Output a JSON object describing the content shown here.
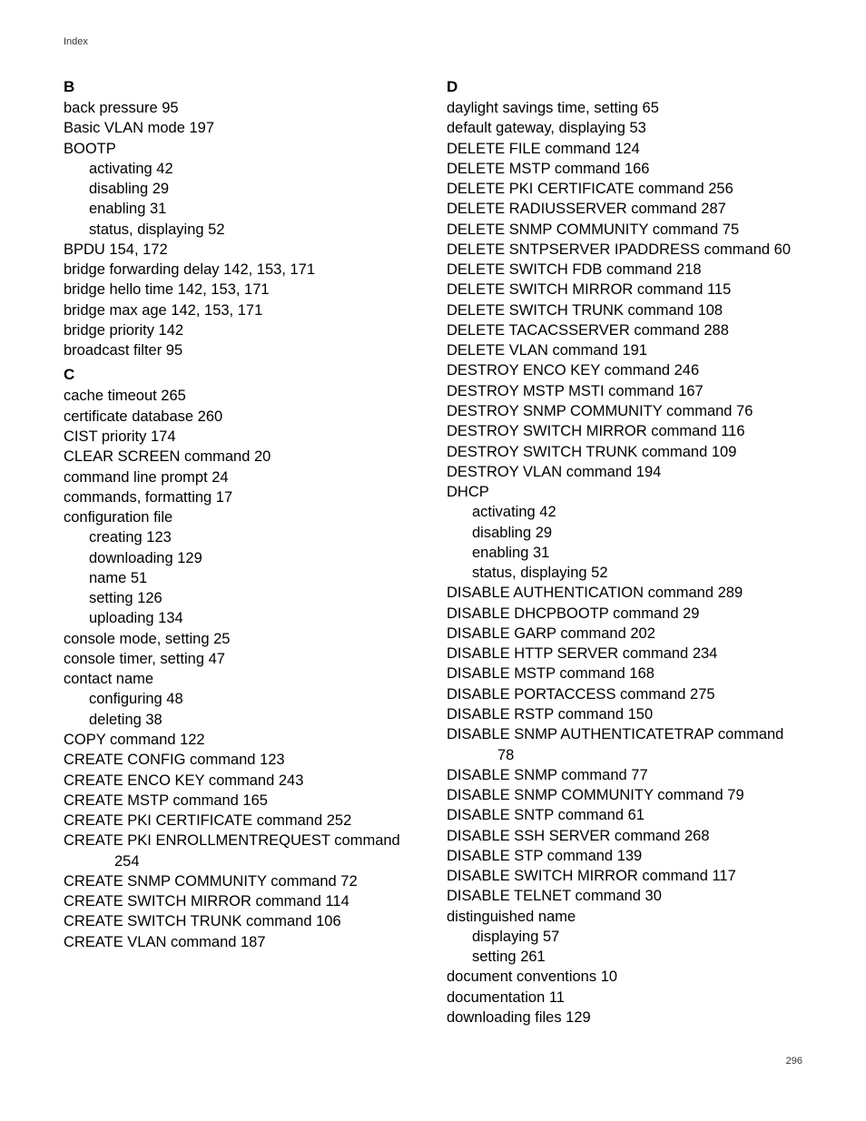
{
  "header": "Index",
  "page_number": "296",
  "left": {
    "B": {
      "letter": "B",
      "lines": [
        {
          "t": "back pressure 95",
          "i": 0
        },
        {
          "t": "Basic VLAN mode 197",
          "i": 0
        },
        {
          "t": "BOOTP",
          "i": 0
        },
        {
          "t": "activating 42",
          "i": 1
        },
        {
          "t": "disabling 29",
          "i": 1
        },
        {
          "t": "enabling 31",
          "i": 1
        },
        {
          "t": "status, displaying 52",
          "i": 1
        },
        {
          "t": "BPDU 154, 172",
          "i": 0
        },
        {
          "t": "bridge forwarding delay 142, 153, 171",
          "i": 0
        },
        {
          "t": "bridge hello time 142, 153, 171",
          "i": 0
        },
        {
          "t": "bridge max age 142, 153, 171",
          "i": 0
        },
        {
          "t": "bridge priority 142",
          "i": 0
        },
        {
          "t": "broadcast filter 95",
          "i": 0
        }
      ]
    },
    "C": {
      "letter": "C",
      "lines": [
        {
          "t": "cache timeout 265",
          "i": 0
        },
        {
          "t": "certificate database 260",
          "i": 0
        },
        {
          "t": "CIST priority 174",
          "i": 0
        },
        {
          "t": "CLEAR SCREEN command 20",
          "i": 0
        },
        {
          "t": "command line prompt 24",
          "i": 0
        },
        {
          "t": "commands, formatting 17",
          "i": 0
        },
        {
          "t": "configuration file",
          "i": 0
        },
        {
          "t": "creating 123",
          "i": 1
        },
        {
          "t": "downloading 129",
          "i": 1
        },
        {
          "t": "name 51",
          "i": 1
        },
        {
          "t": "setting 126",
          "i": 1
        },
        {
          "t": "uploading 134",
          "i": 1
        },
        {
          "t": "console mode, setting 25",
          "i": 0
        },
        {
          "t": "console timer, setting 47",
          "i": 0
        },
        {
          "t": "contact name",
          "i": 0
        },
        {
          "t": "configuring 48",
          "i": 1
        },
        {
          "t": "deleting 38",
          "i": 1
        },
        {
          "t": "COPY command 122",
          "i": 0
        },
        {
          "t": "CREATE CONFIG command 123",
          "i": 0
        },
        {
          "t": "CREATE ENCO KEY command 243",
          "i": 0
        },
        {
          "t": "CREATE MSTP command 165",
          "i": 0
        },
        {
          "t": "CREATE PKI CERTIFICATE command 252",
          "i": 0
        },
        {
          "t": "CREATE PKI ENROLLMENTREQUEST command",
          "i": 0
        },
        {
          "t": "254",
          "i": 2
        },
        {
          "t": "CREATE SNMP COMMUNITY command 72",
          "i": 0
        },
        {
          "t": "CREATE SWITCH MIRROR command 114",
          "i": 0
        },
        {
          "t": "CREATE SWITCH TRUNK command 106",
          "i": 0
        },
        {
          "t": "CREATE VLAN command 187",
          "i": 0
        }
      ]
    }
  },
  "right": {
    "D": {
      "letter": "D",
      "lines": [
        {
          "t": "daylight savings time, setting 65",
          "i": 0
        },
        {
          "t": "default gateway, displaying 53",
          "i": 0
        },
        {
          "t": "DELETE FILE command 124",
          "i": 0
        },
        {
          "t": "DELETE MSTP command 166",
          "i": 0
        },
        {
          "t": "DELETE PKI CERTIFICATE command 256",
          "i": 0
        },
        {
          "t": "DELETE RADIUSSERVER command 287",
          "i": 0
        },
        {
          "t": "DELETE SNMP COMMUNITY command 75",
          "i": 0
        },
        {
          "t": "DELETE SNTPSERVER IPADDRESS command 60",
          "i": 0
        },
        {
          "t": "DELETE SWITCH FDB command 218",
          "i": 0
        },
        {
          "t": "DELETE SWITCH MIRROR command 115",
          "i": 0
        },
        {
          "t": "DELETE SWITCH TRUNK command 108",
          "i": 0
        },
        {
          "t": "DELETE TACACSSERVER command 288",
          "i": 0
        },
        {
          "t": "DELETE VLAN command 191",
          "i": 0
        },
        {
          "t": "DESTROY ENCO KEY command 246",
          "i": 0
        },
        {
          "t": "DESTROY MSTP MSTI command 167",
          "i": 0
        },
        {
          "t": "DESTROY SNMP COMMUNITY command 76",
          "i": 0
        },
        {
          "t": "DESTROY SWITCH MIRROR command 116",
          "i": 0
        },
        {
          "t": "DESTROY SWITCH TRUNK command 109",
          "i": 0
        },
        {
          "t": "DESTROY VLAN command 194",
          "i": 0
        },
        {
          "t": "DHCP",
          "i": 0
        },
        {
          "t": "activating 42",
          "i": 1
        },
        {
          "t": "disabling 29",
          "i": 1
        },
        {
          "t": "enabling 31",
          "i": 1
        },
        {
          "t": "status, displaying 52",
          "i": 1
        },
        {
          "t": "DISABLE AUTHENTICATION command 289",
          "i": 0
        },
        {
          "t": "DISABLE DHCPBOOTP command 29",
          "i": 0
        },
        {
          "t": "DISABLE GARP command 202",
          "i": 0
        },
        {
          "t": "DISABLE HTTP SERVER command 234",
          "i": 0
        },
        {
          "t": "DISABLE MSTP command 168",
          "i": 0
        },
        {
          "t": "DISABLE PORTACCESS command 275",
          "i": 0
        },
        {
          "t": "DISABLE RSTP command 150",
          "i": 0
        },
        {
          "t": "DISABLE SNMP AUTHENTICATETRAP command",
          "i": 0
        },
        {
          "t": "78",
          "i": 2
        },
        {
          "t": "DISABLE SNMP command 77",
          "i": 0
        },
        {
          "t": "DISABLE SNMP COMMUNITY command 79",
          "i": 0
        },
        {
          "t": "DISABLE SNTP command 61",
          "i": 0
        },
        {
          "t": "DISABLE SSH SERVER command 268",
          "i": 0
        },
        {
          "t": "DISABLE STP command 139",
          "i": 0
        },
        {
          "t": "DISABLE SWITCH MIRROR command 117",
          "i": 0
        },
        {
          "t": "DISABLE TELNET command 30",
          "i": 0
        },
        {
          "t": "distinguished name",
          "i": 0
        },
        {
          "t": "displaying 57",
          "i": 1
        },
        {
          "t": "setting 261",
          "i": 1
        },
        {
          "t": "document conventions 10",
          "i": 0
        },
        {
          "t": "documentation 11",
          "i": 0
        },
        {
          "t": "downloading files 129",
          "i": 0
        }
      ]
    }
  }
}
